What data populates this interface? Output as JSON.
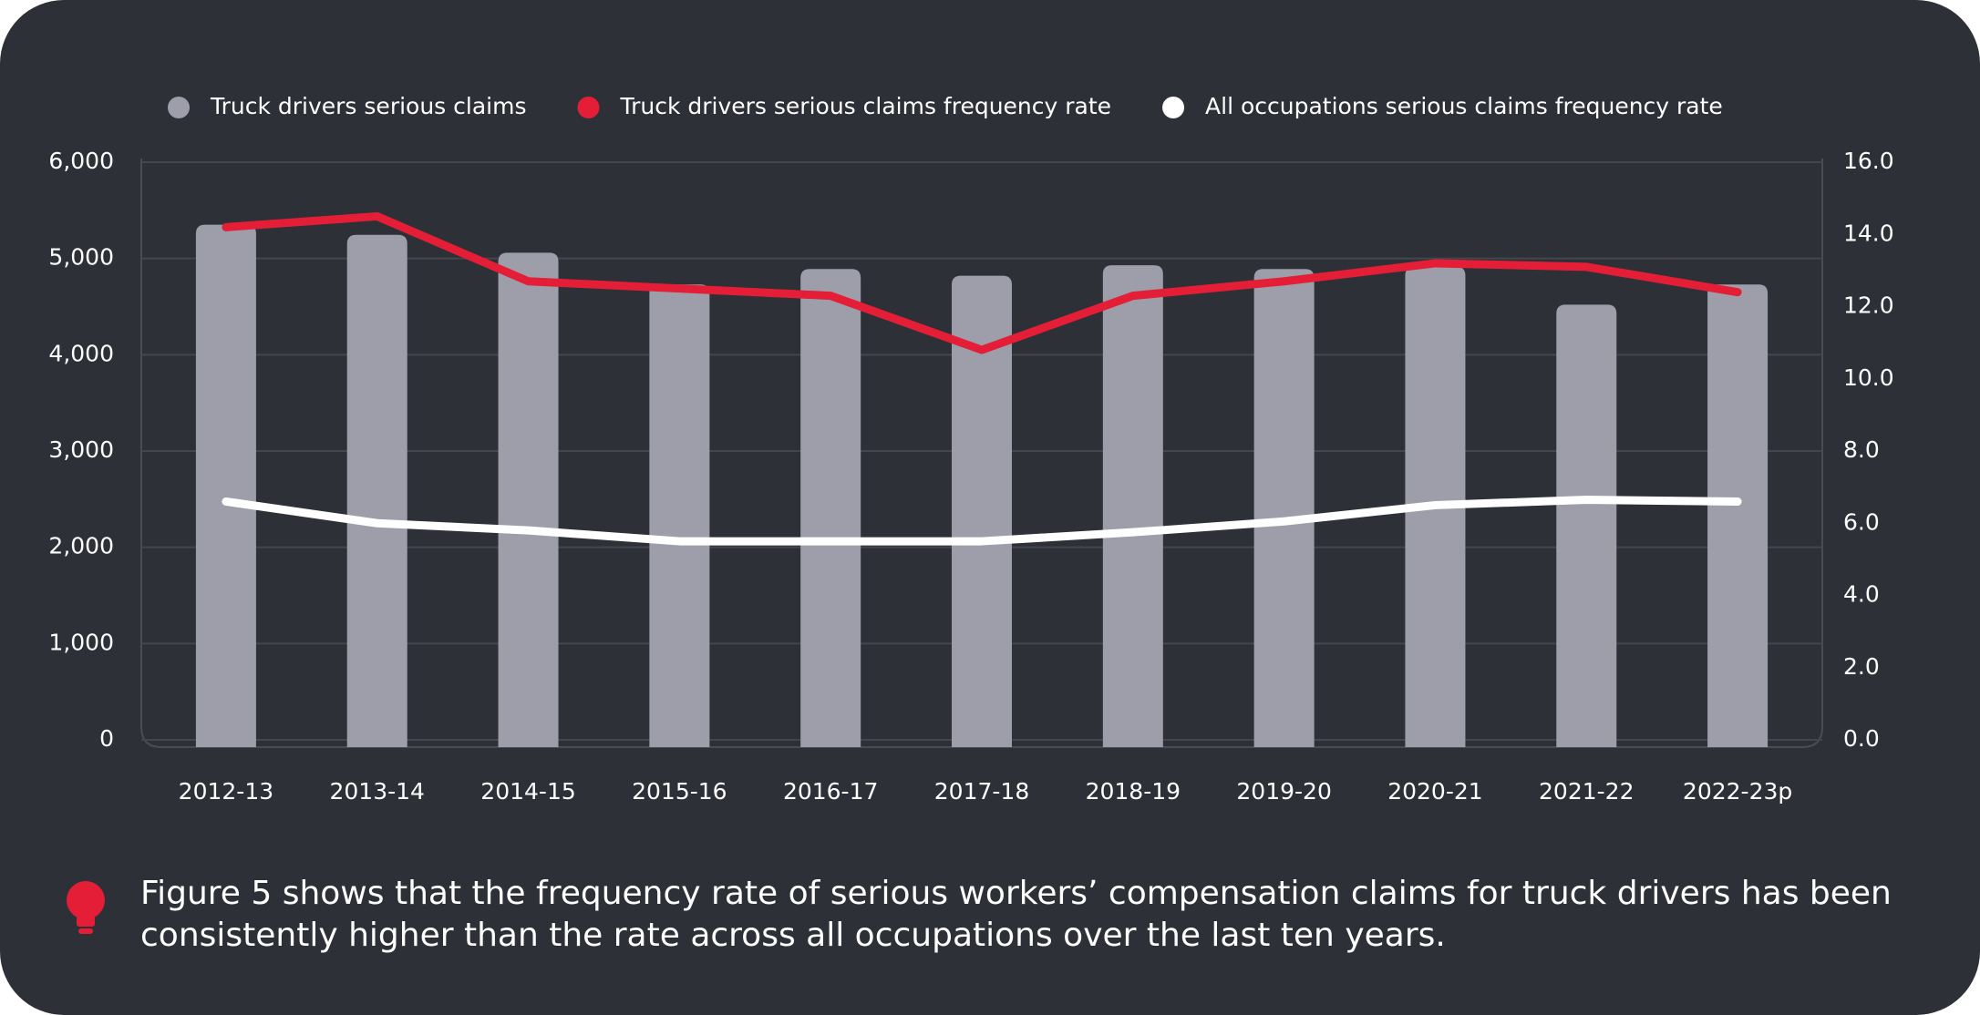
{
  "chart_data": {
    "type": "bar-line",
    "categories": [
      "2012-13",
      "2013-14",
      "2014-15",
      "2015-16",
      "2016-17",
      "2017-18",
      "2018-19",
      "2019-20",
      "2020-21",
      "2021-22",
      "2022-23p"
    ],
    "series": [
      {
        "name": "Truck drivers serious claims",
        "type": "bar",
        "color": "#9d9ea9",
        "values": [
          5350,
          5245,
          5060,
          4730,
          4890,
          4820,
          4930,
          4890,
          4915,
          4520,
          4730
        ]
      },
      {
        "name": "Truck drivers serious claims frequency rate",
        "type": "line",
        "axis": "y2",
        "color": "#e31e36",
        "values": [
          14.2,
          14.5,
          12.7,
          12.5,
          12.3,
          10.8,
          12.3,
          12.7,
          13.2,
          13.1,
          12.4
        ]
      },
      {
        "name": "All occupations serious claims frequency rate",
        "type": "line",
        "axis": "y2",
        "color": "#ffffff",
        "values": [
          6.6,
          6.0,
          5.8,
          5.5,
          5.5,
          5.5,
          5.75,
          6.05,
          6.5,
          6.65,
          6.6
        ]
      }
    ],
    "ylim": [
      0,
      6000
    ],
    "yticks": [
      0,
      {
        "value": 1000,
        "label": "1,000"
      },
      {
        "value": 2000,
        "label": "2,000"
      },
      {
        "value": 3000,
        "label": "3,000"
      },
      {
        "value": 4000,
        "label": "4,000"
      },
      {
        "value": 5000,
        "label": "5,000"
      },
      {
        "value": 6000,
        "label": "6,000"
      }
    ],
    "y2lim": [
      0,
      16
    ],
    "y2ticks": [
      {
        "value": 0,
        "label": "0.0"
      },
      {
        "value": 2,
        "label": "2.0"
      },
      {
        "value": 4,
        "label": "4.0"
      },
      {
        "value": 6,
        "label": "6.0"
      },
      {
        "value": 8,
        "label": "8.0"
      },
      {
        "value": 10,
        "label": "10.0"
      },
      {
        "value": 12,
        "label": "12.0"
      },
      {
        "value": 14,
        "label": "14.0"
      },
      {
        "value": 16,
        "label": "16.0"
      }
    ],
    "grid": true,
    "legend": "top",
    "note": "Figure 5 shows that the frequency rate of serious workers’ compensation claims for truck drivers has been consistently higher than the rate across all occupations over the last ten years."
  }
}
